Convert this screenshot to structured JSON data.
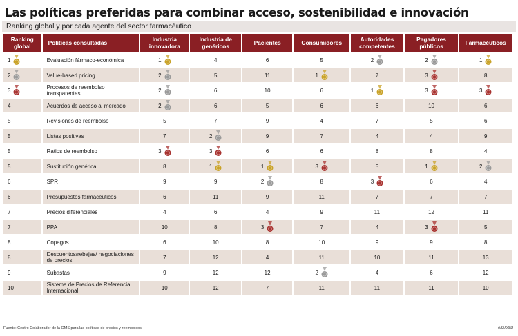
{
  "title": "Las políticas preferidas para combinar acceso, sostenibilidad e innovación",
  "subtitle": "Ranking global y por cada agente del sector farmacéutico",
  "columns": [
    "Ranking global",
    "Políticas consultadas",
    "Industria innovadora",
    "Industria de genéricos",
    "Pacientes",
    "Consumidores",
    "Autoridades competentes",
    "Pagadores públicos",
    "Farmacéuticos"
  ],
  "medal_colors": {
    "gold": "#c9a227",
    "silver": "#9a9a9a",
    "bronze": "#a8322f"
  },
  "rows": [
    {
      "rank": "1",
      "rank_medal": "gold",
      "policy": "Evaluación fármaco-económica",
      "cells": [
        {
          "v": "1",
          "m": "gold"
        },
        {
          "v": "4",
          "m": ""
        },
        {
          "v": "6",
          "m": ""
        },
        {
          "v": "5",
          "m": ""
        },
        {
          "v": "2",
          "m": "silver"
        },
        {
          "v": "2",
          "m": "silver"
        },
        {
          "v": "1",
          "m": "gold"
        }
      ]
    },
    {
      "rank": "2",
      "rank_medal": "silver",
      "policy": "Value-based pricing",
      "cells": [
        {
          "v": "2",
          "m": "silver"
        },
        {
          "v": "5",
          "m": ""
        },
        {
          "v": "11",
          "m": ""
        },
        {
          "v": "1",
          "m": "gold"
        },
        {
          "v": "7",
          "m": ""
        },
        {
          "v": "3",
          "m": "bronze"
        },
        {
          "v": "8",
          "m": ""
        }
      ]
    },
    {
      "rank": "3",
      "rank_medal": "bronze",
      "policy": "Procesos de reembolso transparentes",
      "cells": [
        {
          "v": "2",
          "m": "silver"
        },
        {
          "v": "6",
          "m": ""
        },
        {
          "v": "10",
          "m": ""
        },
        {
          "v": "6",
          "m": ""
        },
        {
          "v": "1",
          "m": "gold"
        },
        {
          "v": "3",
          "m": "bronze"
        },
        {
          "v": "3",
          "m": "bronze"
        }
      ]
    },
    {
      "rank": "4",
      "rank_medal": "",
      "policy": "Acuerdos de acceso al mercado",
      "cells": [
        {
          "v": "2",
          "m": "silver"
        },
        {
          "v": "6",
          "m": ""
        },
        {
          "v": "5",
          "m": ""
        },
        {
          "v": "6",
          "m": ""
        },
        {
          "v": "6",
          "m": ""
        },
        {
          "v": "10",
          "m": ""
        },
        {
          "v": "6",
          "m": ""
        }
      ]
    },
    {
      "rank": "5",
      "rank_medal": "",
      "policy": "Revisiones de reembolso",
      "cells": [
        {
          "v": "5",
          "m": ""
        },
        {
          "v": "7",
          "m": ""
        },
        {
          "v": "9",
          "m": ""
        },
        {
          "v": "4",
          "m": ""
        },
        {
          "v": "7",
          "m": ""
        },
        {
          "v": "5",
          "m": ""
        },
        {
          "v": "6",
          "m": ""
        }
      ]
    },
    {
      "rank": "5",
      "rank_medal": "",
      "policy": "Listas positivas",
      "cells": [
        {
          "v": "7",
          "m": ""
        },
        {
          "v": "2",
          "m": "silver"
        },
        {
          "v": "9",
          "m": ""
        },
        {
          "v": "7",
          "m": ""
        },
        {
          "v": "4",
          "m": ""
        },
        {
          "v": "4",
          "m": ""
        },
        {
          "v": "9",
          "m": ""
        }
      ]
    },
    {
      "rank": "5",
      "rank_medal": "",
      "policy": "Ratios de reembolso",
      "cells": [
        {
          "v": "3",
          "m": "bronze"
        },
        {
          "v": "3",
          "m": "bronze"
        },
        {
          "v": "6",
          "m": ""
        },
        {
          "v": "6",
          "m": ""
        },
        {
          "v": "8",
          "m": ""
        },
        {
          "v": "8",
          "m": ""
        },
        {
          "v": "4",
          "m": ""
        }
      ]
    },
    {
      "rank": "5",
      "rank_medal": "",
      "policy": "Sustitución genérica",
      "cells": [
        {
          "v": "8",
          "m": ""
        },
        {
          "v": "1",
          "m": "gold"
        },
        {
          "v": "1",
          "m": "gold"
        },
        {
          "v": "3",
          "m": "bronze"
        },
        {
          "v": "5",
          "m": ""
        },
        {
          "v": "1",
          "m": "gold"
        },
        {
          "v": "2",
          "m": "silver"
        }
      ]
    },
    {
      "rank": "6",
      "rank_medal": "",
      "policy": "SPR",
      "cells": [
        {
          "v": "9",
          "m": ""
        },
        {
          "v": "9",
          "m": ""
        },
        {
          "v": "2",
          "m": "silver"
        },
        {
          "v": "8",
          "m": ""
        },
        {
          "v": "3",
          "m": "bronze"
        },
        {
          "v": "6",
          "m": ""
        },
        {
          "v": "4",
          "m": ""
        }
      ]
    },
    {
      "rank": "6",
      "rank_medal": "",
      "policy": "Presupuestos farmacéuticos",
      "cells": [
        {
          "v": "6",
          "m": ""
        },
        {
          "v": "11",
          "m": ""
        },
        {
          "v": "9",
          "m": ""
        },
        {
          "v": "11",
          "m": ""
        },
        {
          "v": "7",
          "m": ""
        },
        {
          "v": "7",
          "m": ""
        },
        {
          "v": "7",
          "m": ""
        }
      ]
    },
    {
      "rank": "7",
      "rank_medal": "",
      "policy": "Precios diferenciales",
      "cells": [
        {
          "v": "4",
          "m": ""
        },
        {
          "v": "6",
          "m": ""
        },
        {
          "v": "4",
          "m": ""
        },
        {
          "v": "9",
          "m": ""
        },
        {
          "v": "11",
          "m": ""
        },
        {
          "v": "12",
          "m": ""
        },
        {
          "v": "11",
          "m": ""
        }
      ]
    },
    {
      "rank": "7",
      "rank_medal": "",
      "policy": "PPA",
      "cells": [
        {
          "v": "10",
          "m": ""
        },
        {
          "v": "8",
          "m": ""
        },
        {
          "v": "3",
          "m": "bronze"
        },
        {
          "v": "7",
          "m": ""
        },
        {
          "v": "4",
          "m": ""
        },
        {
          "v": "3",
          "m": "bronze"
        },
        {
          "v": "5",
          "m": ""
        }
      ]
    },
    {
      "rank": "8",
      "rank_medal": "",
      "policy": "Copagos",
      "cells": [
        {
          "v": "6",
          "m": ""
        },
        {
          "v": "10",
          "m": ""
        },
        {
          "v": "8",
          "m": ""
        },
        {
          "v": "10",
          "m": ""
        },
        {
          "v": "9",
          "m": ""
        },
        {
          "v": "9",
          "m": ""
        },
        {
          "v": "8",
          "m": ""
        }
      ]
    },
    {
      "rank": "8",
      "rank_medal": "",
      "policy": "Descuentos/rebajas/ negociaciones de precios",
      "cells": [
        {
          "v": "7",
          "m": ""
        },
        {
          "v": "12",
          "m": ""
        },
        {
          "v": "4",
          "m": ""
        },
        {
          "v": "11",
          "m": ""
        },
        {
          "v": "10",
          "m": ""
        },
        {
          "v": "11",
          "m": ""
        },
        {
          "v": "13",
          "m": ""
        }
      ]
    },
    {
      "rank": "9",
      "rank_medal": "",
      "policy": "Subastas",
      "cells": [
        {
          "v": "9",
          "m": ""
        },
        {
          "v": "12",
          "m": ""
        },
        {
          "v": "12",
          "m": ""
        },
        {
          "v": "2",
          "m": "silver"
        },
        {
          "v": "4",
          "m": ""
        },
        {
          "v": "6",
          "m": ""
        },
        {
          "v": "12",
          "m": ""
        }
      ]
    },
    {
      "rank": "10",
      "rank_medal": "",
      "policy": "Sistema de Precios de Referencia Internacional",
      "cells": [
        {
          "v": "10",
          "m": ""
        },
        {
          "v": "12",
          "m": ""
        },
        {
          "v": "7",
          "m": ""
        },
        {
          "v": "11",
          "m": ""
        },
        {
          "v": "11",
          "m": ""
        },
        {
          "v": "11",
          "m": ""
        },
        {
          "v": "10",
          "m": ""
        }
      ]
    }
  ],
  "source": "Fuente: Centro Colaborador de la OMS para las políticas de precios y reembolsos.",
  "brand": "elGlobal"
}
